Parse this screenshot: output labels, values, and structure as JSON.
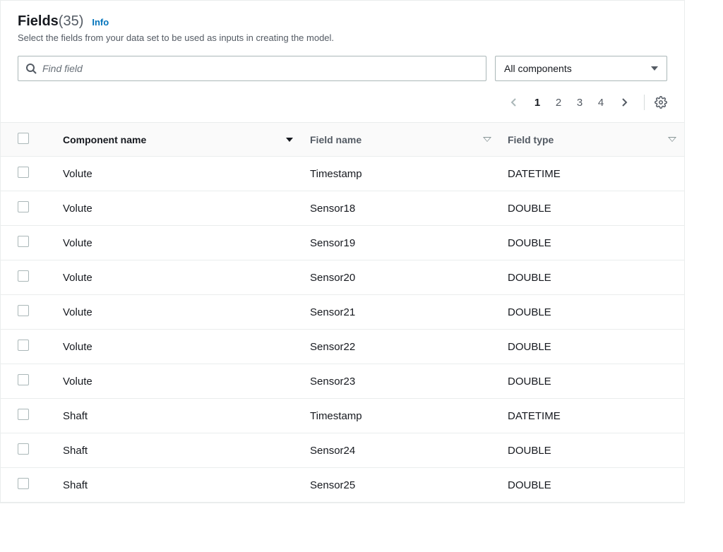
{
  "header": {
    "title": "Fields",
    "count": "(35)",
    "info_label": "Info",
    "subtitle": "Select the fields from your data set to be used as inputs in creating the model."
  },
  "search": {
    "placeholder": "Find field"
  },
  "filter": {
    "selected": "All components"
  },
  "pagination": {
    "pages": [
      "1",
      "2",
      "3",
      "4"
    ],
    "current": "1"
  },
  "table": {
    "columns": {
      "component": "Component name",
      "field": "Field name",
      "type": "Field type"
    },
    "rows": [
      {
        "component": "Volute",
        "field": "Timestamp",
        "type": "DATETIME"
      },
      {
        "component": "Volute",
        "field": "Sensor18",
        "type": "DOUBLE"
      },
      {
        "component": "Volute",
        "field": "Sensor19",
        "type": "DOUBLE"
      },
      {
        "component": "Volute",
        "field": "Sensor20",
        "type": "DOUBLE"
      },
      {
        "component": "Volute",
        "field": "Sensor21",
        "type": "DOUBLE"
      },
      {
        "component": "Volute",
        "field": "Sensor22",
        "type": "DOUBLE"
      },
      {
        "component": "Volute",
        "field": "Sensor23",
        "type": "DOUBLE"
      },
      {
        "component": "Shaft",
        "field": "Timestamp",
        "type": "DATETIME"
      },
      {
        "component": "Shaft",
        "field": "Sensor24",
        "type": "DOUBLE"
      },
      {
        "component": "Shaft",
        "field": "Sensor25",
        "type": "DOUBLE"
      }
    ]
  }
}
